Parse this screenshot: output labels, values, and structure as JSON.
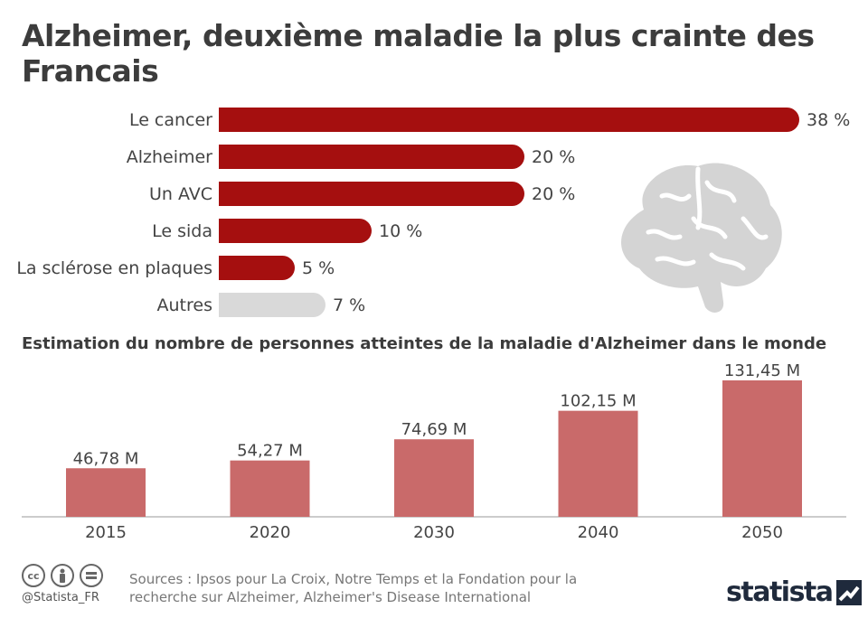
{
  "title": "Alzheimer, deuxième maladie la plus crainte des Francais",
  "subtitle": "Estimation du nombre de personnes atteintes de la maladie d'Alzheimer dans le monde",
  "sources": "Sources : Ipsos pour La Croix, Notre Temps et la Fondation pour la recherche sur Alzheimer, Alzheimer's Disease International",
  "handle": "@Statista_FR",
  "logo_text": "statista",
  "colors": {
    "dark_red": "#a50f0f",
    "grey": "#d9d9d9",
    "bar_red": "#c96a6a",
    "text": "#444444"
  },
  "icons": [
    "cc-icon",
    "person-icon",
    "equals-icon",
    "brain-icon"
  ],
  "chart_data": [
    {
      "type": "bar",
      "orientation": "horizontal",
      "categories": [
        "Le cancer",
        "Alzheimer",
        "Un AVC",
        "Le sida",
        "La sclérose en plaques",
        "Autres"
      ],
      "values": [
        38,
        20,
        20,
        10,
        5,
        7
      ],
      "value_labels": [
        "38 %",
        "20 %",
        "20 %",
        "10 %",
        "5 %",
        "7 %"
      ],
      "bar_colors": [
        "#a50f0f",
        "#a50f0f",
        "#a50f0f",
        "#a50f0f",
        "#a50f0f",
        "#d9d9d9"
      ],
      "unit": "%",
      "xlim": [
        0,
        38
      ],
      "grid": false
    },
    {
      "type": "bar",
      "orientation": "vertical",
      "title": "Estimation du nombre de personnes atteintes de la maladie d'Alzheimer dans le monde",
      "categories": [
        "2015",
        "2020",
        "2030",
        "2040",
        "2050"
      ],
      "values": [
        46.78,
        54.27,
        74.69,
        102.15,
        131.45
      ],
      "value_labels": [
        "46,78 M",
        "54,27 M",
        "74,69 M",
        "102,15 M",
        "131,45 M"
      ],
      "ylim": [
        0,
        131.45
      ],
      "grid": false
    }
  ]
}
